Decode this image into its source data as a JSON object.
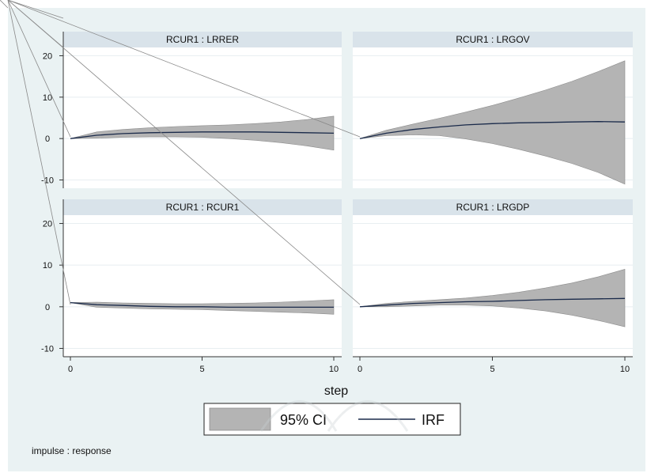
{
  "chart_data": {
    "type": "area",
    "xlabel": "step",
    "note": "impulse : response",
    "colors": {
      "ci_fill": "#b4b4b4",
      "irf_line": "#1a2a4a",
      "panel_header": "#d9e3ea",
      "outer_bg": "#eaf2f3"
    },
    "legend": {
      "placement": "bottom-center",
      "items": [
        "95% CI",
        "IRF"
      ]
    },
    "panels": [
      {
        "title": "RCUR1 : LRRER",
        "xlim": [
          0,
          10
        ],
        "ylim": [
          -12,
          22
        ],
        "x_ticks": [],
        "y_ticks": [
          20,
          10,
          0,
          -10
        ],
        "x": [
          0,
          1,
          2,
          3,
          4,
          5,
          6,
          7,
          8,
          9,
          10
        ],
        "irf": [
          0,
          0.8,
          1.2,
          1.4,
          1.5,
          1.6,
          1.6,
          1.6,
          1.5,
          1.4,
          1.3
        ],
        "lower": [
          0,
          0.1,
          0.3,
          0.4,
          0.4,
          0.3,
          0.0,
          -0.4,
          -1.0,
          -1.8,
          -2.8
        ],
        "upper": [
          0,
          1.6,
          2.2,
          2.6,
          2.9,
          3.1,
          3.3,
          3.6,
          4.0,
          4.6,
          5.4
        ]
      },
      {
        "title": "RCUR1 : LRGOV",
        "xlim": [
          0,
          10
        ],
        "ylim": [
          -12,
          22
        ],
        "x_ticks": [],
        "y_ticks": [],
        "x": [
          0,
          1,
          2,
          3,
          4,
          5,
          6,
          7,
          8,
          9,
          10
        ],
        "irf": [
          0,
          1.3,
          2.2,
          2.8,
          3.3,
          3.6,
          3.8,
          3.9,
          4.0,
          4.1,
          4.0
        ],
        "lower": [
          0,
          0.7,
          0.9,
          0.7,
          -0.1,
          -1.2,
          -2.6,
          -4.2,
          -6.0,
          -8.2,
          -11.0
        ],
        "upper": [
          0,
          2.0,
          3.5,
          4.9,
          6.4,
          8.0,
          9.8,
          11.7,
          13.8,
          16.2,
          18.8
        ]
      },
      {
        "title": "RCUR1 : RCUR1",
        "xlim": [
          0,
          10
        ],
        "ylim": [
          -12,
          22
        ],
        "x_ticks": [
          0,
          5,
          10
        ],
        "y_ticks": [
          20,
          10,
          0,
          -10
        ],
        "x": [
          0,
          1,
          2,
          3,
          4,
          5,
          6,
          7,
          8,
          9,
          10
        ],
        "irf": [
          1.0,
          0.5,
          0.3,
          0.1,
          0.0,
          0.0,
          -0.1,
          -0.1,
          -0.1,
          -0.1,
          -0.1
        ],
        "lower": [
          1.0,
          -0.1,
          -0.3,
          -0.5,
          -0.6,
          -0.7,
          -0.9,
          -1.1,
          -1.3,
          -1.5,
          -1.8
        ],
        "upper": [
          1.0,
          1.1,
          0.9,
          0.8,
          0.7,
          0.7,
          0.8,
          0.9,
          1.1,
          1.4,
          1.7
        ]
      },
      {
        "title": "RCUR1 : LRGDP",
        "xlim": [
          0,
          10
        ],
        "ylim": [
          -12,
          22
        ],
        "x_ticks": [
          0,
          5,
          10
        ],
        "y_ticks": [],
        "x": [
          0,
          1,
          2,
          3,
          4,
          5,
          6,
          7,
          8,
          9,
          10
        ],
        "irf": [
          0,
          0.4,
          0.8,
          1.0,
          1.2,
          1.3,
          1.5,
          1.7,
          1.8,
          1.9,
          2.0
        ],
        "lower": [
          0,
          0.0,
          0.2,
          0.4,
          0.4,
          0.2,
          -0.3,
          -1.0,
          -2.0,
          -3.3,
          -4.8
        ],
        "upper": [
          0,
          0.8,
          1.3,
          1.7,
          2.1,
          2.7,
          3.5,
          4.5,
          5.7,
          7.2,
          9.0
        ]
      }
    ]
  }
}
